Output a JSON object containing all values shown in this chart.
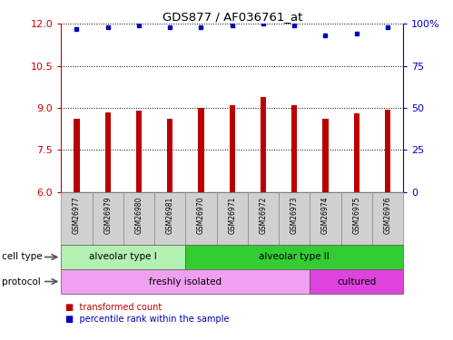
{
  "title": "GDS877 / AF036761_at",
  "samples": [
    "GSM26977",
    "GSM26979",
    "GSM26980",
    "GSM26981",
    "GSM26970",
    "GSM26971",
    "GSM26972",
    "GSM26973",
    "GSM26974",
    "GSM26975",
    "GSM26976"
  ],
  "bar_values": [
    8.6,
    8.85,
    8.9,
    8.6,
    9.0,
    9.1,
    9.4,
    9.1,
    8.6,
    8.8,
    8.95
  ],
  "dot_values": [
    97,
    98,
    99,
    98,
    98,
    99,
    100,
    99,
    93,
    94,
    98
  ],
  "ylim_left": [
    6,
    12
  ],
  "ylim_right": [
    0,
    100
  ],
  "yticks_left": [
    6,
    7.5,
    9,
    10.5,
    12
  ],
  "yticks_right": [
    0,
    25,
    50,
    75,
    100
  ],
  "bar_color": "#bb0000",
  "dot_color": "#0000bb",
  "cell_type_groups": [
    {
      "label": "alveolar type I",
      "start": 0,
      "end": 4,
      "color": "#b3f0b3"
    },
    {
      "label": "alveolar type II",
      "start": 4,
      "end": 11,
      "color": "#33cc33"
    }
  ],
  "protocol_groups": [
    {
      "label": "freshly isolated",
      "start": 0,
      "end": 8,
      "color": "#f0a0f0"
    },
    {
      "label": "cultured",
      "start": 8,
      "end": 11,
      "color": "#dd44dd"
    }
  ],
  "cell_type_label": "cell type",
  "protocol_label": "protocol",
  "legend_items": [
    "transformed count",
    "percentile rank within the sample"
  ],
  "left_axis_color": "#cc0000",
  "right_axis_color": "#0000cc",
  "sample_row_color": "#d0d0d0",
  "bar_width": 0.18
}
